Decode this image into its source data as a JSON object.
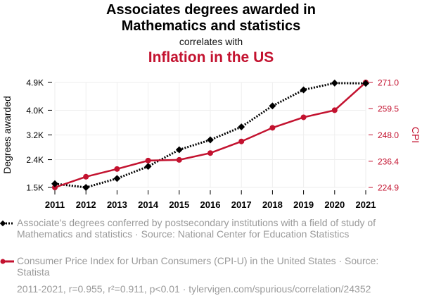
{
  "chart_data": {
    "type": "line",
    "title_line1": "Associates degrees awarded in",
    "title_line2": "Mathematics and statistics",
    "connector": "correlates with",
    "title_secondary": "Inflation in the US",
    "x": [
      "2011",
      "2012",
      "2013",
      "2014",
      "2015",
      "2016",
      "2017",
      "2018",
      "2019",
      "2020",
      "2021"
    ],
    "y_left": {
      "label": "Degrees awarded",
      "tick_labels": [
        "1.5K",
        "2.4K",
        "3.2K",
        "4.0K",
        "4.9K"
      ],
      "tick_values": [
        1500,
        2400,
        3200,
        4000,
        4900
      ],
      "range": [
        1500,
        4900
      ]
    },
    "y_right": {
      "label": "CPI",
      "tick_labels": [
        "224.9",
        "236.4",
        "248.0",
        "259.5",
        "271.0"
      ],
      "tick_values": [
        224.9,
        236.4,
        248.0,
        259.5,
        271.0
      ],
      "range": [
        224.9,
        271.0
      ]
    },
    "series": [
      {
        "name": "Associate's degrees conferred by postsecondary institutions with a field of study of Mathematics and statistics · Source: National Center for Education Statistics",
        "axis": "left",
        "color": "#000000",
        "style": "dotted",
        "marker": "diamond",
        "values": [
          1620,
          1500,
          1790,
          2180,
          2720,
          3040,
          3460,
          4140,
          4660,
          4880,
          4870
        ]
      },
      {
        "name": "Consumer Price Index for Urban Consumers (CPI-U) in the United States · Source: Statista",
        "axis": "right",
        "color": "#c3122f",
        "style": "solid",
        "marker": "circle",
        "values": [
          224.9,
          229.6,
          233.0,
          236.7,
          237.0,
          240.0,
          245.1,
          251.1,
          255.7,
          258.8,
          271.0
        ]
      }
    ]
  },
  "footer": "2011-2021, r=0.955, r²=0.911, p<0.01 · tylervigen.com/spurious/correlation/24352",
  "colors": {
    "accent": "#c3122f",
    "primary": "#000000",
    "muted": "#9a9a9a",
    "grid": "#eeeeee"
  }
}
